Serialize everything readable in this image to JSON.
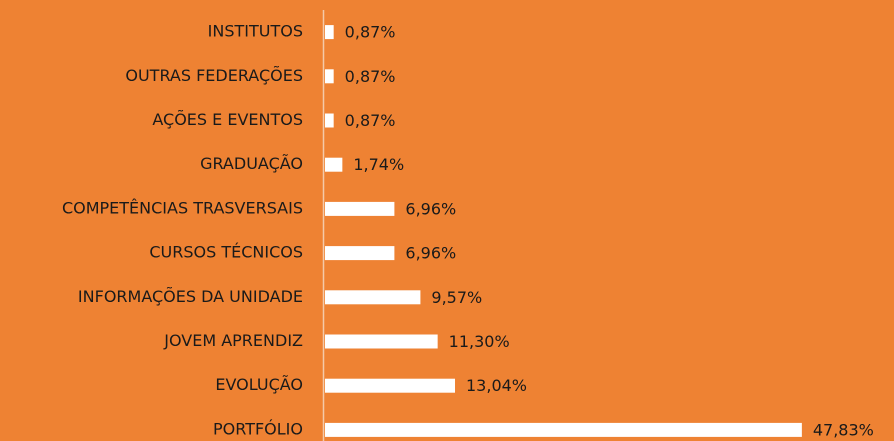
{
  "chart_data": {
    "type": "barh",
    "categories": [
      "INSTITUTOS",
      "OUTRAS FEDERAÇÕES",
      "AÇÕES E EVENTOS",
      "GRADUAÇÃO",
      "COMPETÊNCIAS TRASVERSAIS",
      "CURSOS TÉCNICOS",
      "INFORMAÇÕES DA UNIDADE",
      "JOVEM APRENDIZ",
      "EVOLUÇÃO",
      "PORTFÓLIO"
    ],
    "values": [
      0.87,
      0.87,
      0.87,
      1.74,
      6.96,
      6.96,
      9.57,
      11.3,
      13.04,
      47.83
    ],
    "value_labels": [
      "0,87%",
      "0,87%",
      "0,87%",
      "1,74%",
      "6,96%",
      "6,96%",
      "9,57%",
      "11,30%",
      "13,04%",
      "47,83%"
    ],
    "color": "#ffffff",
    "background": "#ee8233",
    "xlim": [
      0,
      50
    ]
  }
}
